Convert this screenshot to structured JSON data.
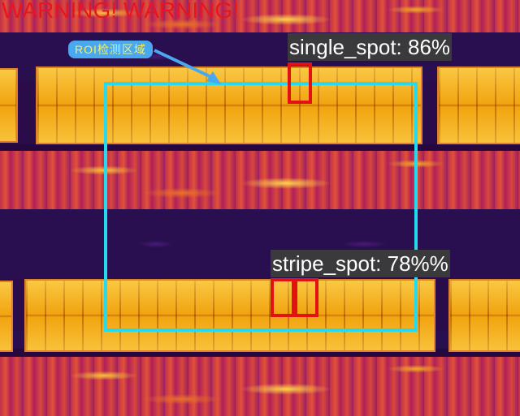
{
  "alert": {
    "text": "WARNING! WARNING!"
  },
  "roi": {
    "label": "ROI检测区域"
  },
  "detections": [
    {
      "label": "single_spot: 86%"
    },
    {
      "label": "stripe_spot: 78%%"
    }
  ],
  "colors": {
    "roi": "#27d9ec",
    "defect": "#e31212",
    "warning": "#e8151f",
    "label_bg": "#3a3a3c",
    "roi_tag_bg": "#4aa8ee",
    "roi_tag_text": "#f4ef6a"
  }
}
